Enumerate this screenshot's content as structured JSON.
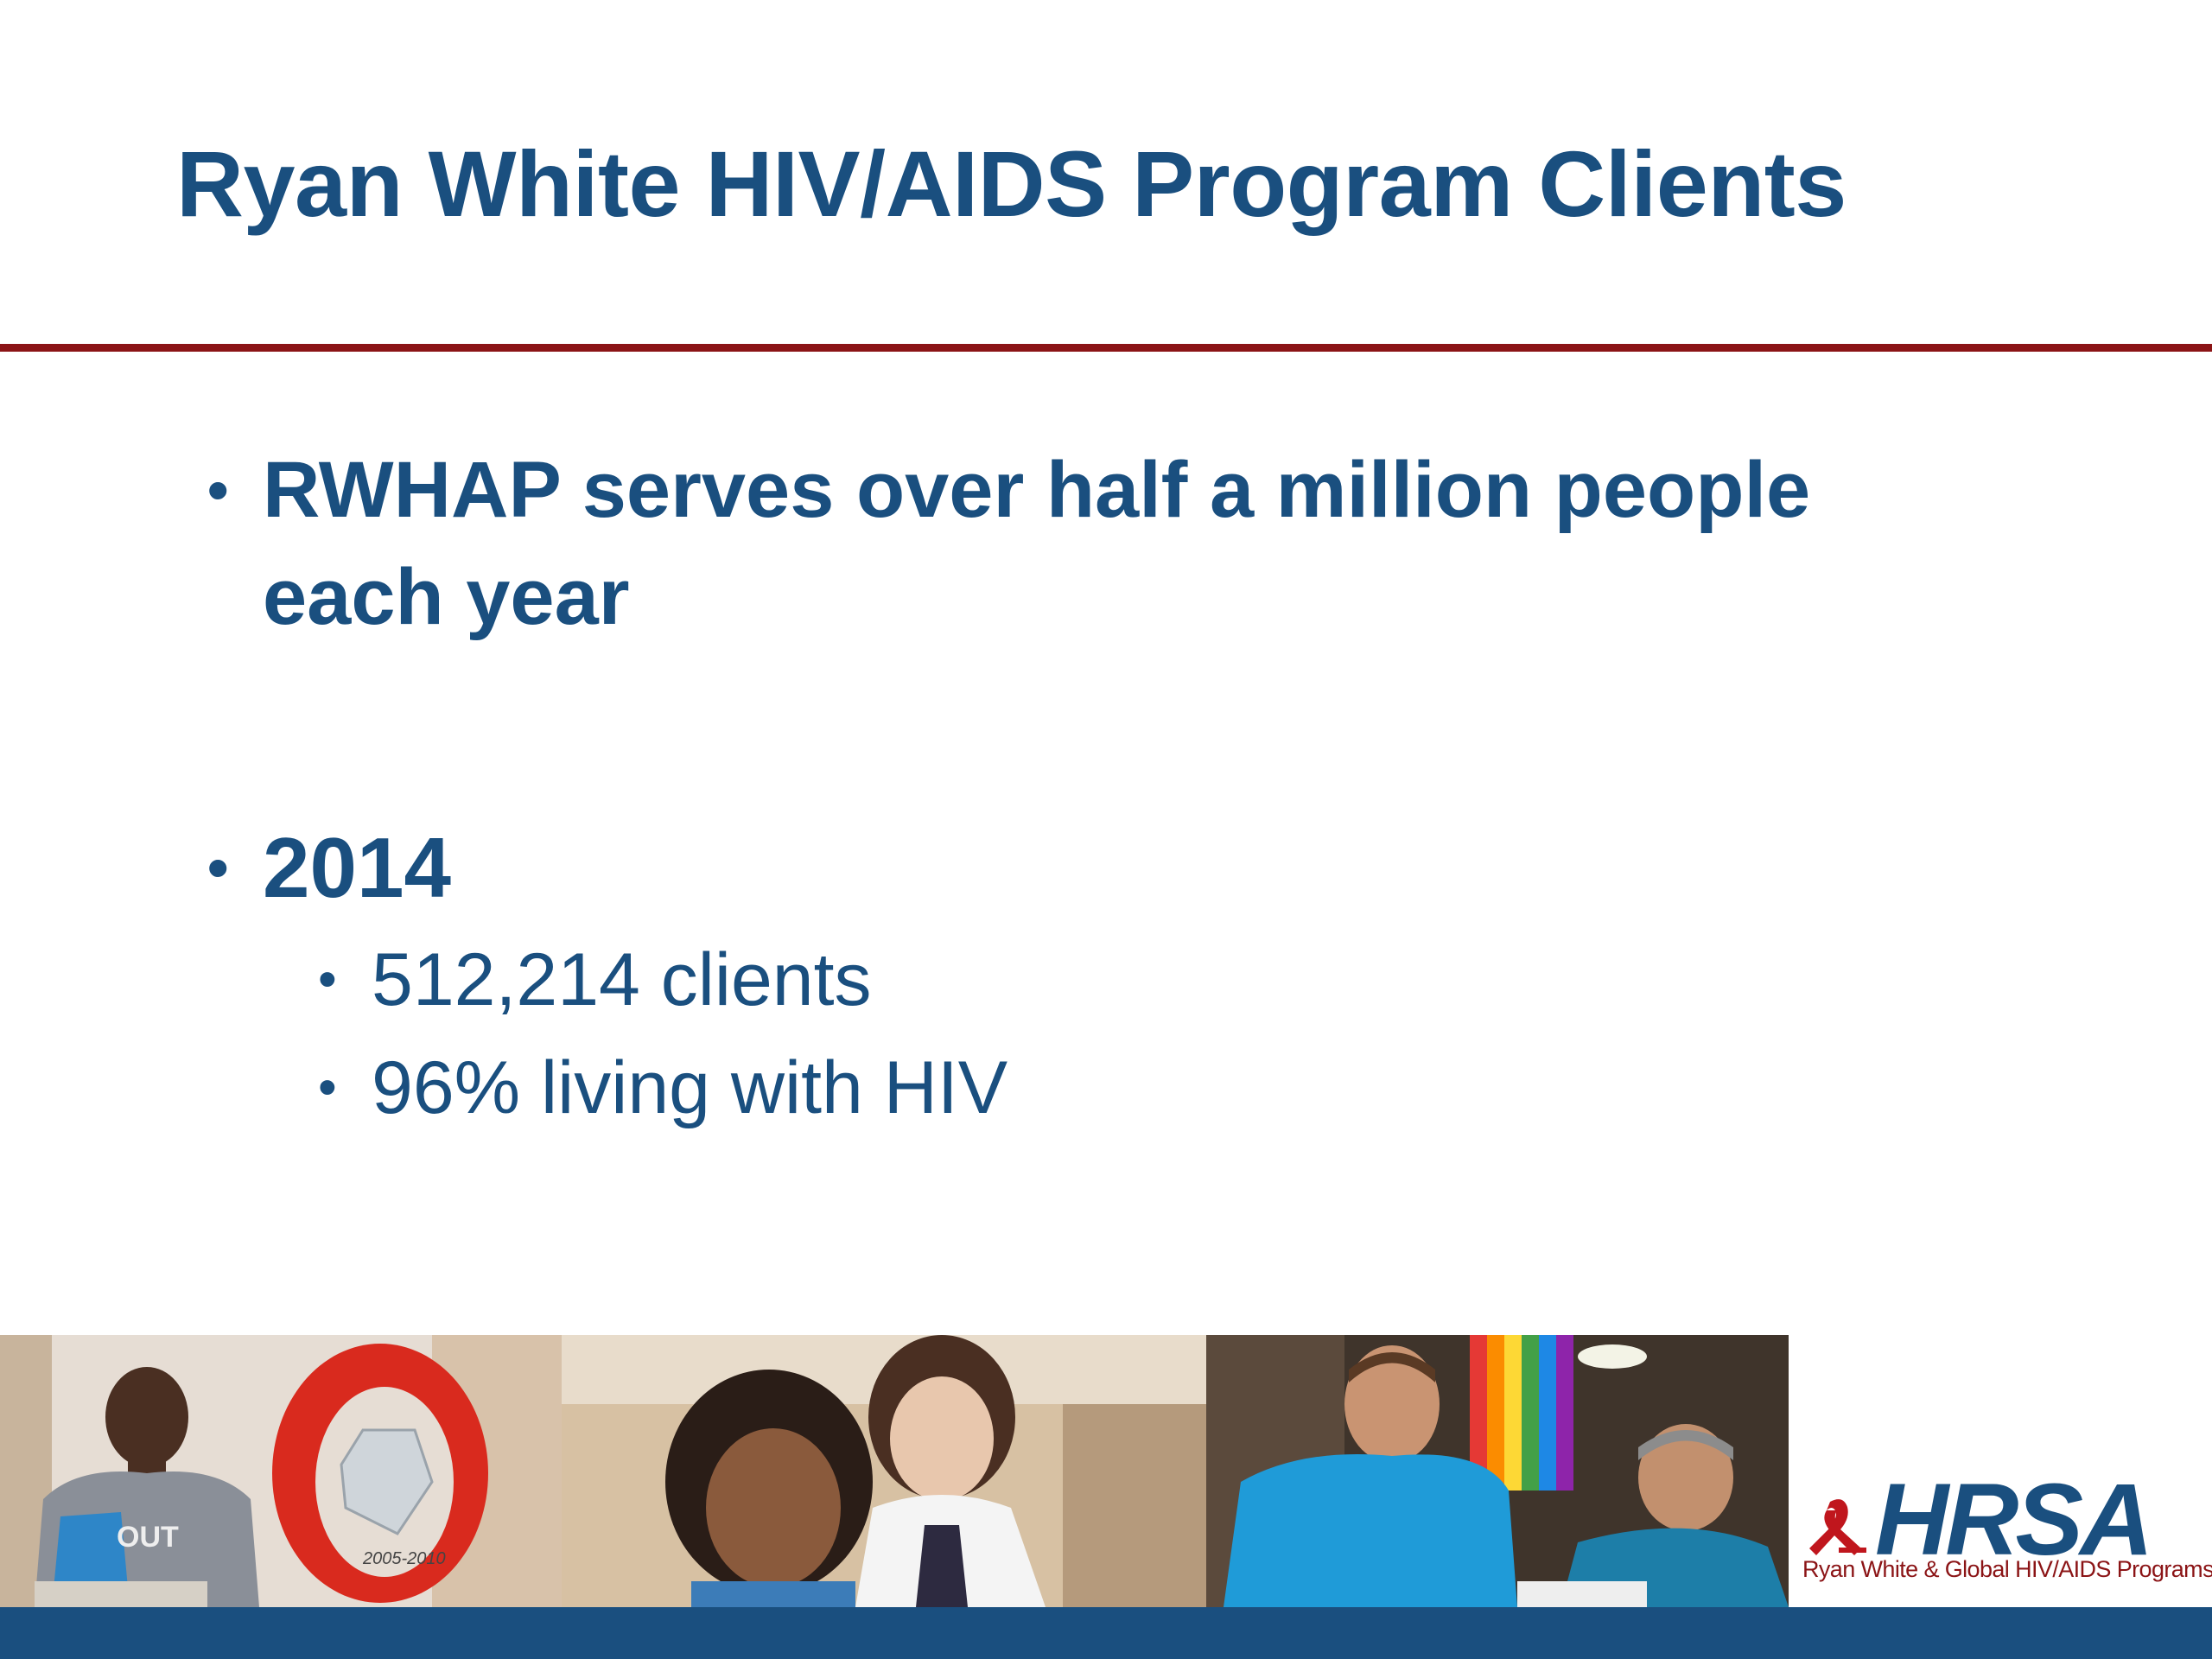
{
  "slide": {
    "title": "Ryan White HIV/AIDS Program Clients",
    "bullets": [
      {
        "text_line1": "RWHAP serves over half a million people",
        "text_line2": "each year"
      },
      {
        "text": "2014",
        "sub_items": [
          "512,214 clients",
          "96% living with HIV"
        ]
      }
    ],
    "bullet_glyph": "•"
  },
  "footer": {
    "logo": {
      "wordmark": "HRSA",
      "subtitle": "Ryan White & Global HIV/AIDS Programs",
      "icon": "red-ribbon-icon"
    },
    "photo_text": {
      "shirt": "OUT",
      "award": "2005-2010"
    }
  },
  "colors": {
    "title_blue": "#1a4f7f",
    "rule_red": "#8b1416",
    "bar_blue": "#1a4f7f"
  }
}
